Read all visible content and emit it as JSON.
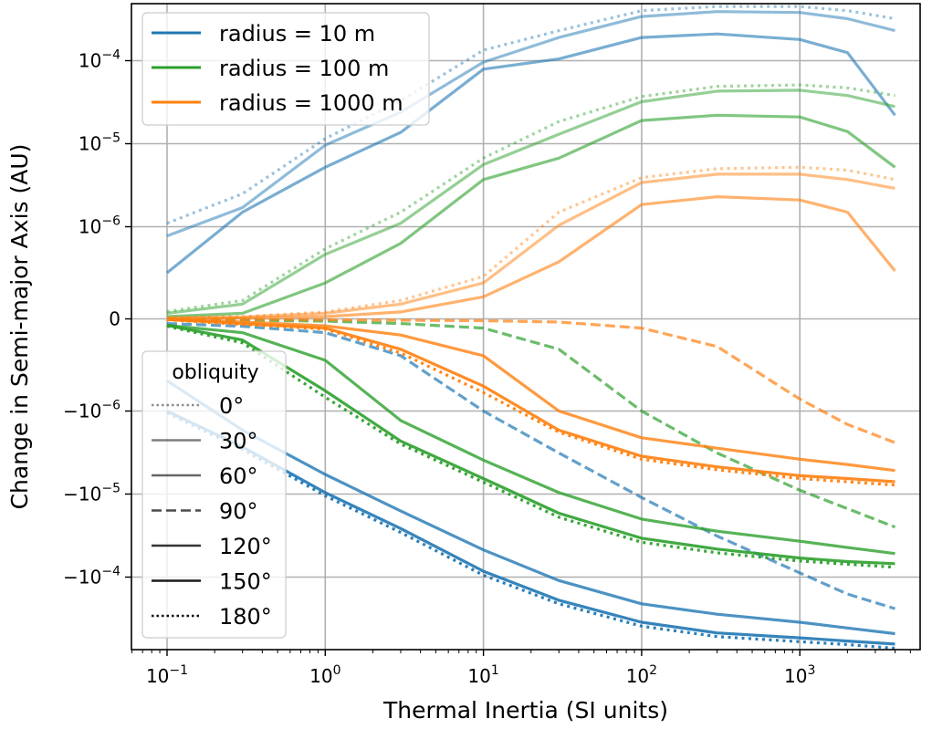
{
  "chart_data": {
    "type": "line",
    "title": "",
    "xlabel": "Thermal Inertia (SI units)",
    "ylabel": "Change in Semi-major Axis (AU)",
    "xscale": "log",
    "yscale": "symlog",
    "ylinthresh": 1e-06,
    "xlim": [
      0.065,
      6500
    ],
    "grid": true,
    "x_ticks": [
      {
        "value": 0.1,
        "base": "10",
        "exp": "−1"
      },
      {
        "value": 1,
        "base": "10",
        "exp": "0"
      },
      {
        "value": 10,
        "base": "10",
        "exp": "1"
      },
      {
        "value": 100,
        "base": "10",
        "exp": "2"
      },
      {
        "value": 1000,
        "base": "10",
        "exp": "3"
      }
    ],
    "y_ticks": [
      {
        "value": 0.0001,
        "base": "10",
        "exp": "−4"
      },
      {
        "value": 1e-05,
        "base": "10",
        "exp": "−5"
      },
      {
        "value": 1e-06,
        "base": "10",
        "exp": "−6"
      },
      {
        "value": 0,
        "base": "0",
        "exp": ""
      },
      {
        "value": -1e-06,
        "base": "−10",
        "exp": "−6"
      },
      {
        "value": -1e-05,
        "base": "−10",
        "exp": "−5"
      },
      {
        "value": -0.0001,
        "base": "−10",
        "exp": "−4"
      }
    ],
    "legend_radius": {
      "placement": "top-left",
      "entries": [
        {
          "label": "radius = 10 m",
          "color": "#1f77b4"
        },
        {
          "label": "radius = 100 m",
          "color": "#2ca02c"
        },
        {
          "label": "radius = 1000 m",
          "color": "#ff7f0e"
        }
      ]
    },
    "legend_obliquity": {
      "placement": "bottom-left",
      "title": "obliquity",
      "entries": [
        {
          "label": "0°",
          "style": "dotted",
          "opacity": 0.45
        },
        {
          "label": "30°",
          "style": "solid",
          "opacity": 0.5
        },
        {
          "label": "60°",
          "style": "solid",
          "opacity": 0.6
        },
        {
          "label": "90°",
          "style": "dashed",
          "opacity": 0.7
        },
        {
          "label": "120°",
          "style": "solid",
          "opacity": 0.8
        },
        {
          "label": "150°",
          "style": "solid",
          "opacity": 0.9
        },
        {
          "label": "180°",
          "style": "dotted",
          "opacity": 0.95
        }
      ]
    },
    "x": [
      0.1,
      0.3,
      1,
      3,
      10,
      30,
      100,
      300,
      1000,
      2000,
      4000
    ],
    "series": [
      {
        "radius": "10 m",
        "color": "#1f77b4",
        "obliquity": "0°",
        "style": "dotted",
        "opacity": 0.45,
        "values": [
          1.1e-06,
          2.5e-06,
          1.15e-05,
          3.3e-05,
          0.000134,
          0.00023,
          0.0004,
          0.00045,
          0.00045,
          0.0004,
          0.00032
        ]
      },
      {
        "radius": "10 m",
        "color": "#1f77b4",
        "obliquity": "30°",
        "style": "solid",
        "opacity": 0.5,
        "values": [
          9e-07,
          1.7e-06,
          9.6e-06,
          2.4e-05,
          9.6e-05,
          0.00019,
          0.00034,
          0.00039,
          0.00038,
          0.00032,
          0.00023
        ]
      },
      {
        "radius": "10 m",
        "color": "#1f77b4",
        "obliquity": "60°",
        "style": "solid",
        "opacity": 0.6,
        "values": [
          5e-07,
          1.5e-06,
          5.2e-06,
          1.37e-05,
          7.9e-05,
          0.000105,
          0.00019,
          0.00021,
          0.00018,
          0.000125,
          2.2e-05
        ]
      },
      {
        "radius": "10 m",
        "color": "#1f77b4",
        "obliquity": "90°",
        "style": "dashed",
        "opacity": 0.7,
        "values": [
          -5e-08,
          -8e-08,
          -1.5e-07,
          -4e-07,
          -1e-06,
          -3.2e-06,
          -1.1e-05,
          -3.2e-05,
          -8.9e-05,
          -0.00016,
          -0.00024
        ]
      },
      {
        "radius": "10 m",
        "color": "#1f77b4",
        "obliquity": "120°",
        "style": "solid",
        "opacity": 0.8,
        "values": [
          -6.7e-07,
          -1.7e-06,
          -5.8e-06,
          -1.6e-05,
          -4.7e-05,
          -0.00011,
          -0.00021,
          -0.00028,
          -0.00035,
          -0.00041,
          -0.00048
        ]
      },
      {
        "radius": "10 m",
        "color": "#1f77b4",
        "obliquity": "150°",
        "style": "solid",
        "opacity": 0.9,
        "values": [
          -1e-06,
          -2.7e-06,
          -9.6e-06,
          -2.6e-05,
          -8.5e-05,
          -0.00019,
          -0.00035,
          -0.00047,
          -0.00054,
          -0.00059,
          -0.00064
        ]
      },
      {
        "radius": "10 m",
        "color": "#1f77b4",
        "obliquity": "180°",
        "style": "dotted",
        "opacity": 0.95,
        "values": [
          -1.05e-06,
          -2.9e-06,
          -1.05e-05,
          -2.9e-05,
          -9.5e-05,
          -0.00021,
          -0.00039,
          -0.00052,
          -0.0006,
          -0.00065,
          -0.00072
        ]
      },
      {
        "radius": "100 m",
        "color": "#2ca02c",
        "obliquity": "0°",
        "style": "dotted",
        "opacity": 0.45,
        "values": [
          8e-08,
          2e-07,
          7.6e-07,
          1.5e-06,
          6.7e-06,
          1.85e-05,
          3.7e-05,
          4.9e-05,
          5.1e-05,
          4.7e-05,
          3.8e-05
        ]
      },
      {
        "radius": "100 m",
        "color": "#2ca02c",
        "obliquity": "30°",
        "style": "solid",
        "opacity": 0.5,
        "values": [
          6e-08,
          1.6e-07,
          7e-07,
          1.1e-06,
          5.6e-06,
          1.3e-05,
          3.2e-05,
          4.3e-05,
          4.4e-05,
          3.8e-05,
          2.8e-05
        ]
      },
      {
        "radius": "100 m",
        "color": "#2ca02c",
        "obliquity": "60°",
        "style": "solid",
        "opacity": 0.6,
        "values": [
          2.5e-08,
          6e-08,
          3.9e-07,
          8.2e-07,
          3.7e-06,
          6.7e-06,
          1.9e-05,
          2.2e-05,
          2.1e-05,
          1.4e-05,
          5.2e-06
        ]
      },
      {
        "radius": "100 m",
        "color": "#2ca02c",
        "obliquity": "90°",
        "style": "dashed",
        "opacity": 0.7,
        "values": [
          -1e-08,
          -1.5e-08,
          -2.5e-08,
          -5e-08,
          -1e-07,
          -3.3e-07,
          -1e-06,
          -3.2e-06,
          -9e-06,
          -1.5e-05,
          -2.5e-05
        ]
      },
      {
        "radius": "100 m",
        "color": "#2ca02c",
        "obliquity": "120°",
        "style": "solid",
        "opacity": 0.8,
        "values": [
          -7e-08,
          -1.5e-07,
          -4.5e-07,
          -1.3e-06,
          -3.9e-06,
          -9.6e-06,
          -2e-05,
          -2.8e-05,
          -3.7e-05,
          -4.4e-05,
          -5.2e-05
        ]
      },
      {
        "radius": "100 m",
        "color": "#2ca02c",
        "obliquity": "150°",
        "style": "solid",
        "opacity": 0.9,
        "values": [
          -7e-08,
          -2.3e-07,
          -7.8e-07,
          -2.3e-06,
          -6.5e-06,
          -1.7e-05,
          -3.4e-05,
          -4.6e-05,
          -5.9e-05,
          -6.5e-05,
          -6.9e-05
        ]
      },
      {
        "radius": "100 m",
        "color": "#2ca02c",
        "obliquity": "180°",
        "style": "dotted",
        "opacity": 0.95,
        "values": [
          -8e-08,
          -2.6e-07,
          -8.5e-07,
          -2.5e-06,
          -7.2e-06,
          -1.9e-05,
          -3.8e-05,
          -5.1e-05,
          -6.4e-05,
          -7e-05,
          -7.6e-05
        ]
      },
      {
        "radius": "1000 m",
        "color": "#ff7f0e",
        "obliquity": "0°",
        "style": "dotted",
        "opacity": 0.45,
        "values": [
          1.5e-08,
          2.5e-08,
          7.5e-08,
          2e-07,
          4.6e-07,
          1.5e-06,
          3.9e-06,
          5e-06,
          5.2e-06,
          4.8e-06,
          3.7e-06
        ]
      },
      {
        "radius": "1000 m",
        "color": "#ff7f0e",
        "obliquity": "30°",
        "style": "solid",
        "opacity": 0.5,
        "values": [
          1e-08,
          2e-08,
          6e-08,
          1.6e-07,
          3.9e-07,
          1.04e-06,
          3.4e-06,
          4.3e-06,
          4.3e-06,
          3.7e-06,
          2.9e-06
        ]
      },
      {
        "radius": "1000 m",
        "color": "#ff7f0e",
        "obliquity": "60°",
        "style": "solid",
        "opacity": 0.6,
        "values": [
          5e-09,
          1e-08,
          2.5e-08,
          7.5e-08,
          2.4e-07,
          6.2e-07,
          1.85e-06,
          2.3e-06,
          2.1e-06,
          1.5e-06,
          5.2e-07
        ]
      },
      {
        "radius": "1000 m",
        "color": "#ff7f0e",
        "obliquity": "90°",
        "style": "dashed",
        "opacity": 0.7,
        "values": [
          -5e-09,
          -5e-09,
          -1e-08,
          -1.5e-08,
          -2e-08,
          -3.5e-08,
          -1e-07,
          -3e-07,
          -8.7e-07,
          -1.45e-06,
          -2.4e-06
        ]
      },
      {
        "radius": "1000 m",
        "color": "#ff7f0e",
        "obliquity": "120°",
        "style": "solid",
        "opacity": 0.8,
        "values": [
          -5e-09,
          -3.5e-08,
          -7.5e-08,
          -1.75e-07,
          -4e-07,
          -1e-06,
          -2.1e-06,
          -2.8e-06,
          -3.8e-06,
          -4.4e-06,
          -5.2e-06
        ]
      },
      {
        "radius": "1000 m",
        "color": "#ff7f0e",
        "obliquity": "150°",
        "style": "solid",
        "opacity": 0.9,
        "values": [
          -8e-09,
          -5e-08,
          -1e-07,
          -3.3e-07,
          -7.3e-07,
          -1.7e-06,
          -3.5e-06,
          -4.7e-06,
          -6e-06,
          -6.5e-06,
          -7.1e-06
        ]
      },
      {
        "radius": "1000 m",
        "color": "#ff7f0e",
        "obliquity": "180°",
        "style": "dotted",
        "opacity": 0.95,
        "values": [
          -1e-08,
          -6e-08,
          -1.1e-07,
          -3.7e-07,
          -8e-07,
          -1.8e-06,
          -3.8e-06,
          -5.1e-06,
          -6.5e-06,
          -7.1e-06,
          -7.8e-06
        ]
      }
    ]
  }
}
